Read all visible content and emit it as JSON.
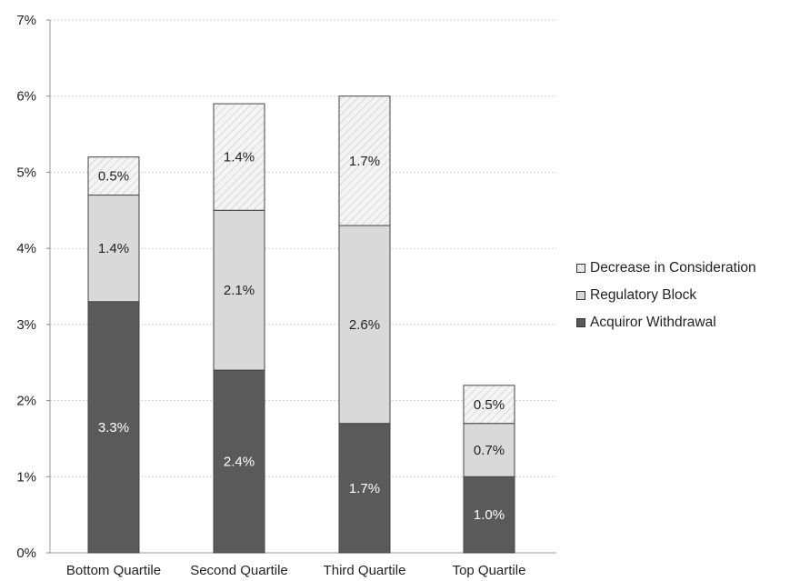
{
  "chart_data": {
    "type": "bar",
    "stacked": true,
    "categories": [
      "Bottom Quartile",
      "Second Quartile",
      "Third Quartile",
      "Top Quartile"
    ],
    "series": [
      {
        "name": "Acquiror Withdrawal",
        "values": [
          3.3,
          2.4,
          1.7,
          1.0
        ],
        "labels": [
          "3.3%",
          "2.4%",
          "1.7%",
          "1.0%"
        ],
        "color": "#5a5a5a",
        "label_color": "#ffffff"
      },
      {
        "name": "Regulatory Block",
        "values": [
          1.4,
          2.1,
          2.6,
          0.7
        ],
        "labels": [
          "1.4%",
          "2.1%",
          "2.6%",
          "0.7%"
        ],
        "color": "#d9d9d9",
        "label_color": "#222222"
      },
      {
        "name": "Decrease in Consideration",
        "values": [
          0.5,
          1.4,
          1.7,
          0.5
        ],
        "labels": [
          "0.5%",
          "1.4%",
          "1.7%",
          "0.5%"
        ],
        "color": "#f2f2f2",
        "label_color": "#222222"
      }
    ],
    "y_ticks": [
      "0%",
      "1%",
      "2%",
      "3%",
      "4%",
      "5%",
      "6%",
      "7%"
    ],
    "ylim": [
      0,
      7
    ],
    "title": "",
    "xlabel": "",
    "ylabel": "",
    "grid": true,
    "legend_position": "right",
    "legend_order": [
      "Decrease in Consideration",
      "Regulatory Block",
      "Acquiror Withdrawal"
    ]
  }
}
